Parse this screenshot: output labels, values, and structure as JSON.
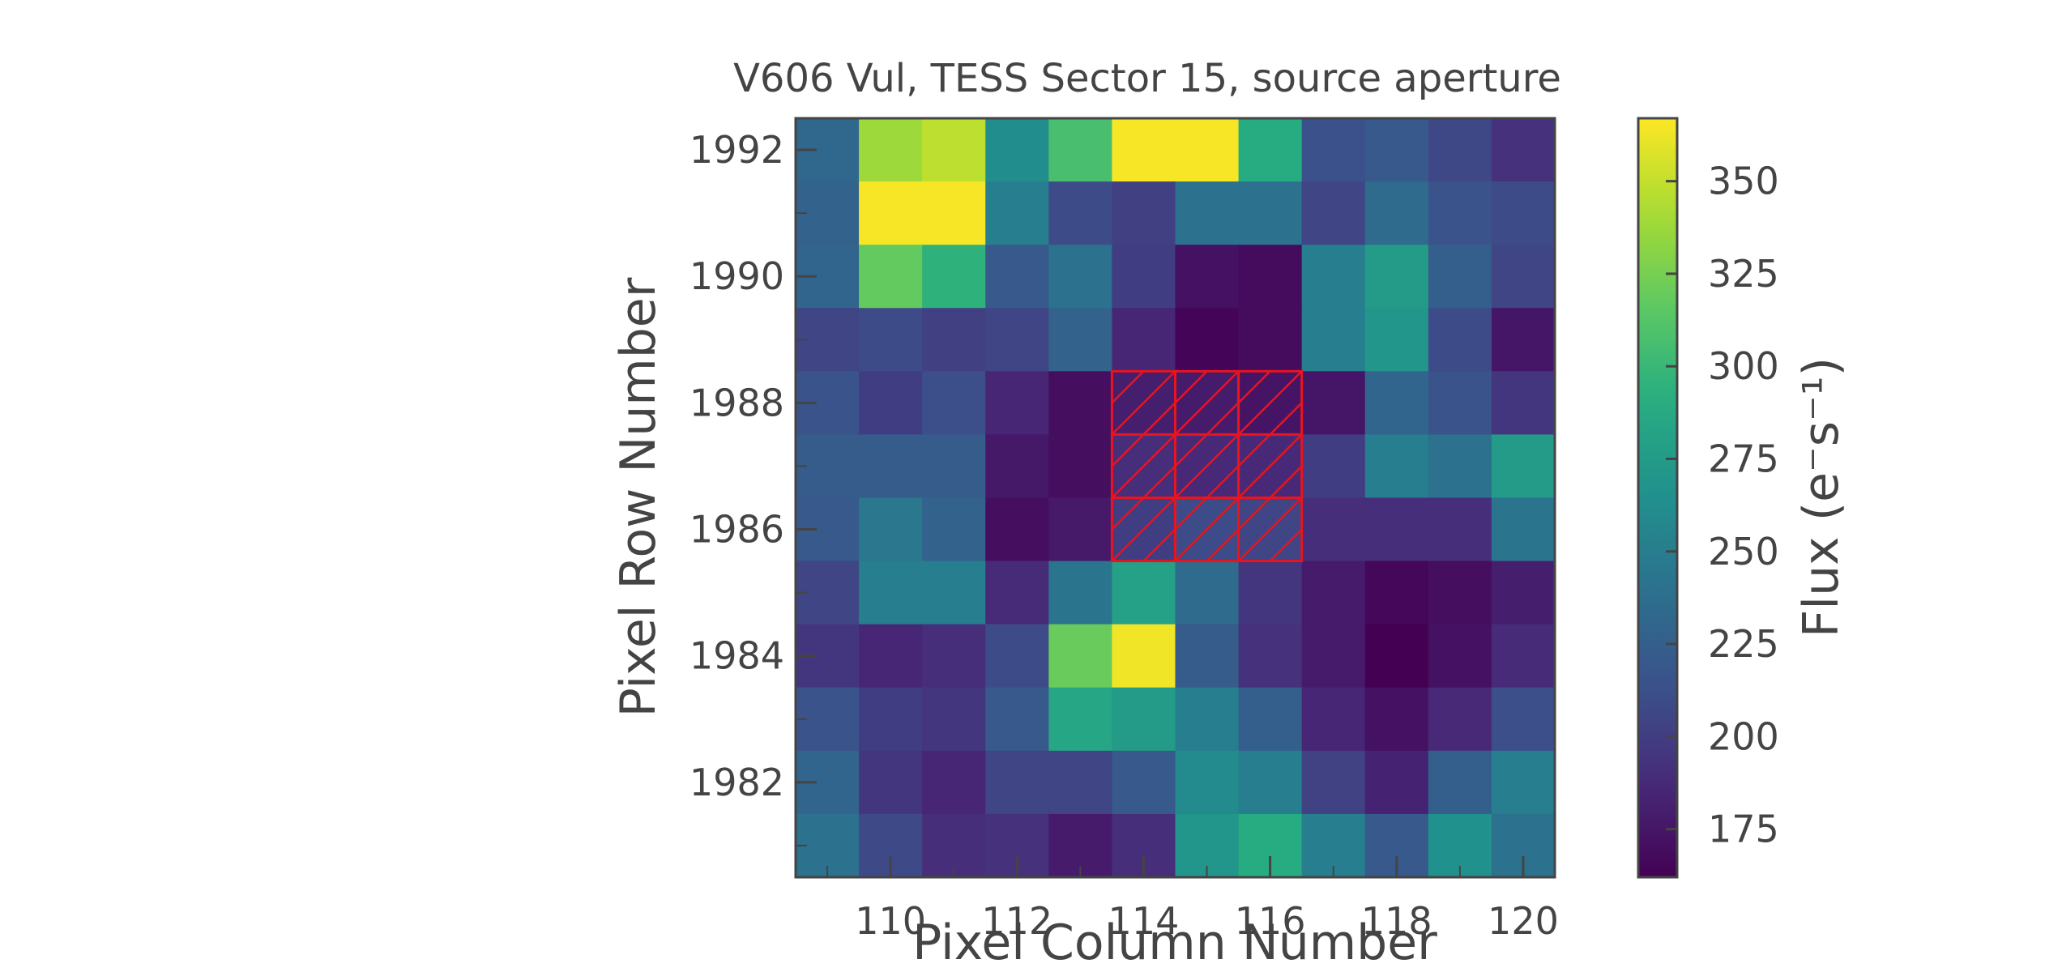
{
  "chart_data": {
    "type": "heatmap",
    "title": "V606 Vul, TESS Sector 15, source aperture",
    "xlabel": "Pixel Column Number",
    "ylabel": "Pixel Row Number",
    "colorbar_label": "Flux (e⁻s⁻¹)",
    "colormap": "viridis",
    "color_range": [
      162,
      367
    ],
    "columns": [
      109,
      110,
      111,
      112,
      113,
      114,
      115,
      116,
      117,
      118,
      119,
      120
    ],
    "rows": [
      1992,
      1991,
      1990,
      1989,
      1988,
      1987,
      1986,
      1985,
      1984,
      1983,
      1982,
      1981
    ],
    "x_ticks": [
      110,
      112,
      114,
      116,
      118,
      120
    ],
    "y_ticks": [
      1992,
      1990,
      1988,
      1986,
      1984,
      1982
    ],
    "colorbar_ticks": [
      175,
      200,
      225,
      250,
      275,
      300,
      325,
      350
    ],
    "flux": [
      [
        232,
        338,
        348,
        262,
        307,
        365,
        365,
        290,
        213,
        220,
        207,
        192
      ],
      [
        228,
        365,
        365,
        250,
        210,
        202,
        240,
        240,
        205,
        235,
        215,
        210
      ],
      [
        230,
        318,
        295,
        220,
        240,
        200,
        172,
        168,
        250,
        275,
        225,
        205
      ],
      [
        205,
        210,
        202,
        205,
        228,
        185,
        164,
        168,
        250,
        270,
        210,
        175
      ],
      [
        215,
        200,
        212,
        185,
        170,
        180,
        178,
        174,
        175,
        230,
        215,
        195
      ],
      [
        222,
        222,
        222,
        176,
        170,
        190,
        187,
        187,
        200,
        250,
        240,
        275
      ],
      [
        220,
        245,
        228,
        170,
        177,
        200,
        209,
        205,
        190,
        190,
        190,
        242
      ],
      [
        205,
        250,
        250,
        188,
        242,
        280,
        235,
        195,
        178,
        166,
        170,
        180
      ],
      [
        195,
        185,
        190,
        210,
        320,
        363,
        222,
        192,
        178,
        162,
        172,
        188
      ],
      [
        215,
        200,
        195,
        220,
        285,
        275,
        250,
        225,
        185,
        172,
        187,
        212
      ],
      [
        230,
        195,
        185,
        205,
        205,
        220,
        260,
        250,
        203,
        183,
        225,
        250
      ],
      [
        240,
        208,
        190,
        192,
        178,
        190,
        270,
        290,
        250,
        220,
        265,
        240
      ]
    ],
    "aperture": {
      "columns": [
        114,
        115,
        116
      ],
      "rows": [
        1986,
        1987,
        1988
      ],
      "edge_color": "#e8141e",
      "hatch": "diagonal"
    },
    "axis_color": "#444444",
    "grid": false
  }
}
